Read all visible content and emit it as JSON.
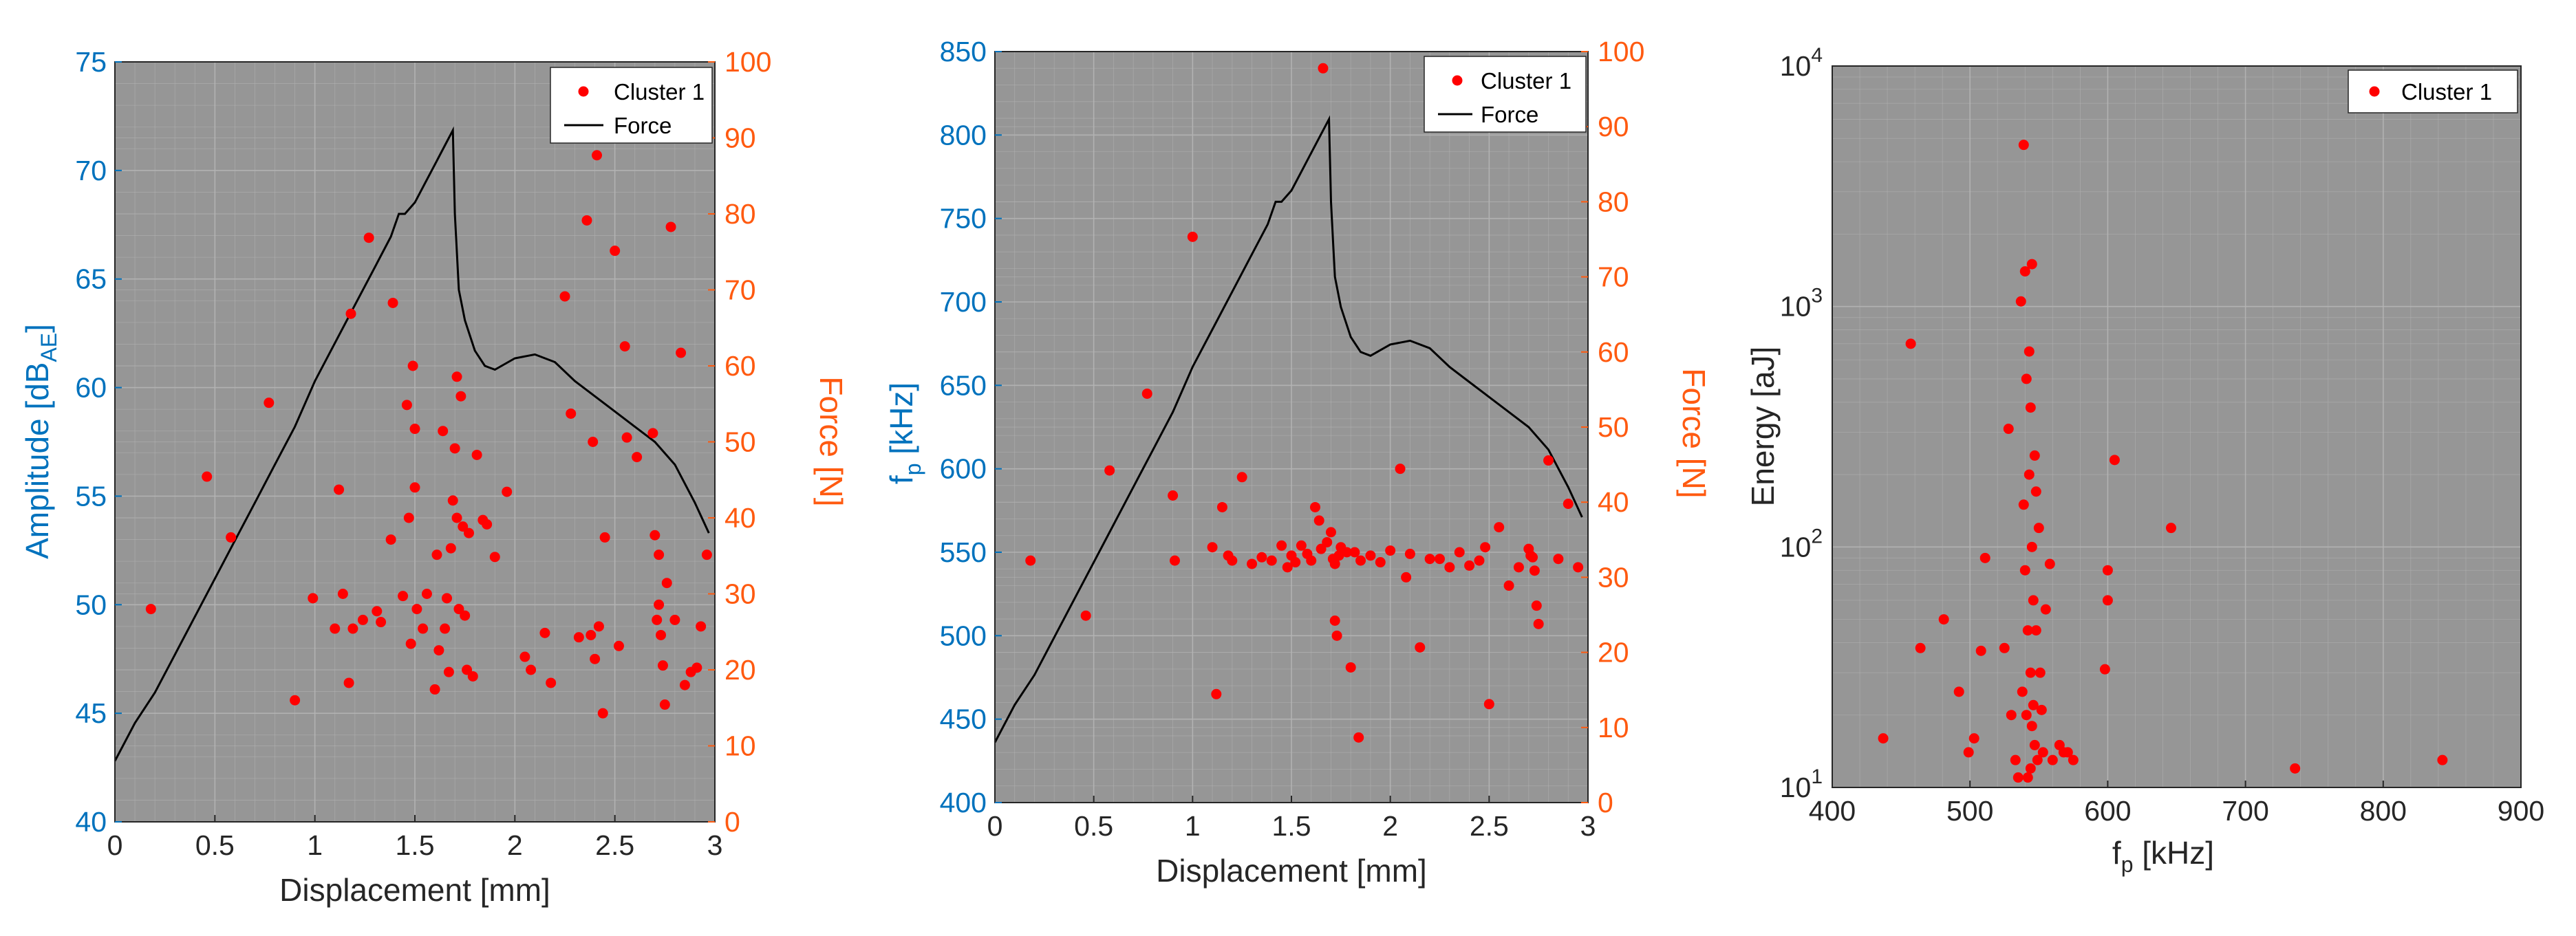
{
  "colors": {
    "plot_background": "#969696",
    "grid": "#b4b4b4",
    "blue_axis": "#0072bd",
    "orange_axis": "#ff5a10",
    "marker": "#ff0000",
    "force_line": "#000000"
  },
  "legend": {
    "marker_label": "Cluster 1",
    "line_label": "Force"
  },
  "chart_data": [
    {
      "type": "scatter",
      "title": "",
      "xlabel": "Displacement [mm]",
      "ylabel_left": "Amplitude [dB",
      "ylabel_left_sub": "AE",
      "ylabel_left_end": "]",
      "ylabel_right": "Force [N]",
      "xlim": [
        0,
        3
      ],
      "ylim_left": [
        40,
        75
      ],
      "ylim_right": [
        0,
        100
      ],
      "xticks": [
        "0",
        "0.5",
        "1",
        "1.5",
        "2",
        "2.5",
        "3"
      ],
      "yticks_left": [
        "40",
        "45",
        "50",
        "55",
        "60",
        "65",
        "70",
        "75"
      ],
      "yticks_right": [
        "0",
        "10",
        "20",
        "30",
        "40",
        "50",
        "60",
        "70",
        "80",
        "90",
        "100"
      ],
      "legend_position": "top-right",
      "grid": true,
      "series": [
        {
          "name": "Cluster 1",
          "x": [
            0.18,
            0.46,
            0.58,
            0.77,
            0.9,
            0.99,
            1.1,
            1.12,
            1.14,
            1.17,
            1.18,
            1.19,
            1.24,
            1.27,
            1.31,
            1.33,
            1.38,
            1.39,
            1.44,
            1.46,
            1.47,
            1.48,
            1.49,
            1.5,
            1.5,
            1.51,
            1.54,
            1.56,
            1.6,
            1.61,
            1.62,
            1.64,
            1.65,
            1.66,
            1.67,
            1.68,
            1.69,
            1.7,
            1.71,
            1.71,
            1.72,
            1.73,
            1.74,
            1.75,
            1.76,
            1.77,
            1.79,
            1.81,
            1.84,
            1.86,
            1.9,
            1.96,
            2.05,
            2.08,
            2.15,
            2.18,
            2.25,
            2.28,
            2.32,
            2.36,
            2.38,
            2.39,
            2.4,
            2.41,
            2.42,
            2.44,
            2.45,
            2.5,
            2.52,
            2.55,
            2.56,
            2.61,
            2.69,
            2.7,
            2.71,
            2.72,
            2.72,
            2.73,
            2.74,
            2.75,
            2.76,
            2.78,
            2.8,
            2.83,
            2.85,
            2.88,
            2.91,
            2.93,
            2.96
          ],
          "y": [
            49.8,
            55.9,
            53.1,
            59.3,
            45.6,
            50.3,
            48.9,
            55.3,
            50.5,
            46.4,
            63.4,
            48.9,
            49.3,
            66.9,
            49.7,
            49.2,
            53.0,
            63.9,
            50.4,
            59.2,
            54.0,
            48.2,
            61.0,
            58.1,
            55.4,
            49.8,
            48.9,
            50.5,
            46.1,
            52.3,
            47.9,
            58.0,
            48.9,
            50.3,
            46.9,
            52.6,
            54.8,
            57.2,
            54.0,
            60.5,
            49.8,
            59.6,
            53.6,
            49.5,
            47.0,
            53.3,
            46.7,
            56.9,
            53.9,
            53.7,
            52.2,
            55.2,
            47.6,
            47.0,
            48.7,
            46.4,
            64.2,
            58.8,
            48.5,
            67.7,
            48.6,
            57.5,
            47.5,
            70.7,
            49.0,
            45.0,
            53.1,
            66.3,
            48.1,
            61.9,
            57.7,
            56.8,
            57.9,
            53.2,
            49.3,
            52.3,
            50.0,
            48.6,
            47.2,
            45.4,
            51.0,
            67.4,
            49.3,
            61.6,
            46.3,
            46.9,
            47.1,
            49.0,
            52.3
          ]
        },
        {
          "name": "Force",
          "axis": "right",
          "x": [
            0,
            0.1,
            0.2,
            0.3,
            0.4,
            0.5,
            0.6,
            0.7,
            0.8,
            0.9,
            1.0,
            1.1,
            1.2,
            1.3,
            1.38,
            1.42,
            1.45,
            1.5,
            1.55,
            1.6,
            1.65,
            1.69,
            1.7,
            1.71,
            1.72,
            1.75,
            1.8,
            1.85,
            1.9,
            2.0,
            2.1,
            2.2,
            2.3,
            2.4,
            2.5,
            2.6,
            2.7,
            2.8,
            2.9,
            2.97
          ],
          "y": [
            8,
            13,
            17,
            22,
            27,
            32,
            37,
            42,
            47,
            52,
            58,
            63,
            68,
            73,
            77,
            80,
            80,
            81.5,
            84,
            86.5,
            89,
            91,
            80,
            75,
            70,
            66,
            62,
            60,
            59.5,
            61,
            61.5,
            60.5,
            58,
            56,
            54,
            52,
            50,
            47,
            42,
            38
          ]
        }
      ]
    },
    {
      "type": "scatter",
      "title": "",
      "xlabel": "Displacement [mm]",
      "ylabel_left": "f",
      "ylabel_left_sub": "p",
      "ylabel_left_end": " [kHz]",
      "ylabel_right": "Force [N]",
      "xlim": [
        0,
        3
      ],
      "ylim_left": [
        400,
        850
      ],
      "ylim_right": [
        0,
        100
      ],
      "xticks": [
        "0",
        "0.5",
        "1",
        "1.5",
        "2",
        "2.5",
        "3"
      ],
      "yticks_left": [
        "400",
        "450",
        "500",
        "550",
        "600",
        "650",
        "700",
        "750",
        "800",
        "850"
      ],
      "yticks_right": [
        "0",
        "10",
        "20",
        "30",
        "40",
        "50",
        "60",
        "70",
        "80",
        "90",
        "100"
      ],
      "legend_position": "top-right",
      "grid": true,
      "series": [
        {
          "name": "Cluster 1",
          "x": [
            0.18,
            0.46,
            0.58,
            0.77,
            0.9,
            0.91,
            1.0,
            1.1,
            1.12,
            1.15,
            1.18,
            1.2,
            1.25,
            1.3,
            1.35,
            1.4,
            1.45,
            1.48,
            1.5,
            1.52,
            1.55,
            1.58,
            1.6,
            1.62,
            1.64,
            1.65,
            1.66,
            1.68,
            1.7,
            1.71,
            1.72,
            1.72,
            1.73,
            1.74,
            1.75,
            1.78,
            1.8,
            1.82,
            1.84,
            1.85,
            1.9,
            1.95,
            2.0,
            2.05,
            2.08,
            2.1,
            2.15,
            2.2,
            2.25,
            2.3,
            2.35,
            2.4,
            2.45,
            2.48,
            2.5,
            2.55,
            2.6,
            2.65,
            2.7,
            2.71,
            2.72,
            2.73,
            2.74,
            2.75,
            2.8,
            2.85,
            2.9,
            2.95
          ],
          "y": [
            545,
            512,
            599,
            645,
            584,
            545,
            739,
            553,
            465,
            577,
            548,
            545,
            595,
            543,
            547,
            545,
            554,
            541,
            548,
            544,
            554,
            549,
            545,
            577,
            569,
            552,
            840,
            556,
            562,
            546,
            509,
            543,
            500,
            548,
            553,
            550,
            481,
            550,
            439,
            545,
            548,
            544,
            551,
            600,
            535,
            549,
            493,
            546,
            546,
            541,
            550,
            542,
            545,
            553,
            459,
            565,
            530,
            541,
            552,
            548,
            547,
            539,
            518,
            507,
            605,
            546,
            579,
            541
          ]
        },
        {
          "name": "Force",
          "axis": "right",
          "x": [
            0,
            0.1,
            0.2,
            0.3,
            0.4,
            0.5,
            0.6,
            0.7,
            0.8,
            0.9,
            1.0,
            1.1,
            1.2,
            1.3,
            1.38,
            1.42,
            1.45,
            1.5,
            1.55,
            1.6,
            1.65,
            1.69,
            1.7,
            1.71,
            1.72,
            1.75,
            1.8,
            1.85,
            1.9,
            2.0,
            2.1,
            2.2,
            2.3,
            2.4,
            2.5,
            2.6,
            2.7,
            2.8,
            2.9,
            2.97
          ],
          "y": [
            8,
            13,
            17,
            22,
            27,
            32,
            37,
            42,
            47,
            52,
            58,
            63,
            68,
            73,
            77,
            80,
            80,
            81.5,
            84,
            86.5,
            89,
            91,
            80,
            75,
            70,
            66,
            62,
            60,
            59.5,
            61,
            61.5,
            60.5,
            58,
            56,
            54,
            52,
            50,
            47,
            42,
            38
          ]
        }
      ]
    },
    {
      "type": "scatter",
      "title": "",
      "xlabel": "f",
      "xlabel_sub": "p",
      "xlabel_end": " [kHz]",
      "ylabel_left": "Energy [aJ]",
      "yscale": "log",
      "xlim": [
        400,
        900
      ],
      "ylim_left": [
        10,
        10000
      ],
      "xticks": [
        "400",
        "500",
        "600",
        "700",
        "800",
        "900"
      ],
      "yticks_left_base": "10",
      "yticks_left_exp": [
        "1",
        "2",
        "3",
        "4"
      ],
      "legend_position": "top-right",
      "grid": true,
      "series": [
        {
          "name": "Cluster 1",
          "x": [
            437,
            457,
            464,
            481,
            492,
            499,
            503,
            508,
            511,
            525,
            528,
            530,
            533,
            535,
            537,
            538,
            539,
            539,
            540,
            540,
            541,
            541,
            542,
            542,
            543,
            543,
            544,
            544,
            544,
            545,
            545,
            545,
            546,
            546,
            547,
            547,
            548,
            548,
            549,
            550,
            551,
            552,
            553,
            555,
            558,
            560,
            565,
            568,
            571,
            575,
            598,
            600,
            600,
            605,
            646,
            736,
            843
          ],
          "y": [
            16,
            700,
            38,
            50,
            25,
            14,
            16,
            37,
            90,
            38,
            310,
            20,
            13,
            11,
            1050,
            25,
            4700,
            150,
            1400,
            80,
            20,
            500,
            11,
            45,
            650,
            200,
            30,
            380,
            12,
            18,
            1500,
            100,
            60,
            22,
            240,
            15,
            45,
            170,
            13,
            120,
            30,
            21,
            14,
            55,
            85,
            13,
            15,
            14,
            14,
            13,
            31,
            80,
            60,
            230,
            120,
            12,
            13
          ]
        }
      ]
    }
  ]
}
